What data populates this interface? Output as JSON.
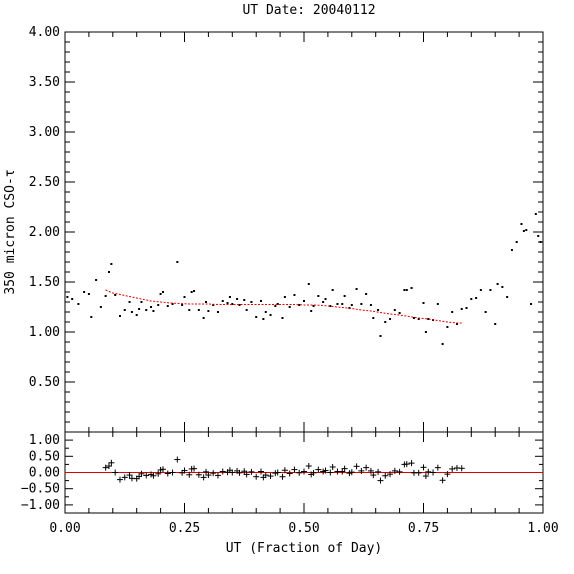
{
  "chart_data": [
    {
      "type": "scatter",
      "title": "UT Date: 20040112",
      "ylabel": "350 micron CSO-τ",
      "xlabel": "",
      "xlim": [
        0.0,
        1.0
      ],
      "ylim": [
        0.0,
        4.0
      ],
      "xticks": [
        "0.00",
        "0.25",
        "0.50",
        "0.75",
        "1.00"
      ],
      "yticks": [
        "0.50",
        "1.00",
        "1.50",
        "2.00",
        "2.50",
        "3.00",
        "3.50",
        "4.00"
      ],
      "ytick_values": [
        0.5,
        1.0,
        1.5,
        2.0,
        2.5,
        3.0,
        3.5,
        4.0
      ],
      "series": [
        {
          "marker": "dot",
          "color": "#000000",
          "x": [
            0.005,
            0.015,
            0.028,
            0.04,
            0.05,
            0.055,
            0.065,
            0.075,
            0.085,
            0.092,
            0.097,
            0.105,
            0.115,
            0.125,
            0.135,
            0.14,
            0.15,
            0.155,
            0.16,
            0.17,
            0.18,
            0.185,
            0.195,
            0.2,
            0.205,
            0.215,
            0.225,
            0.235,
            0.245,
            0.25,
            0.26,
            0.265,
            0.27,
            0.28,
            0.29,
            0.295,
            0.3,
            0.31,
            0.32,
            0.33,
            0.34,
            0.345,
            0.35,
            0.36,
            0.365,
            0.375,
            0.38,
            0.39,
            0.4,
            0.41,
            0.415,
            0.42,
            0.43,
            0.44,
            0.445,
            0.455,
            0.46,
            0.47,
            0.48,
            0.49,
            0.5,
            0.51,
            0.515,
            0.52,
            0.53,
            0.54,
            0.545,
            0.555,
            0.56,
            0.57,
            0.58,
            0.585,
            0.595,
            0.6,
            0.61,
            0.62,
            0.63,
            0.64,
            0.645,
            0.655,
            0.66,
            0.67,
            0.68,
            0.69,
            0.7,
            0.71,
            0.715,
            0.725,
            0.73,
            0.74,
            0.75,
            0.755,
            0.76,
            0.77,
            0.78,
            0.79,
            0.8,
            0.81,
            0.82,
            0.83,
            0.84,
            0.85,
            0.86,
            0.87,
            0.88,
            0.89,
            0.9,
            0.905,
            0.915,
            0.925,
            0.935,
            0.945,
            0.955,
            0.96,
            0.965,
            0.975,
            0.985,
            0.99,
            0.995
          ],
          "y": [
            1.35,
            1.33,
            1.28,
            1.4,
            1.38,
            1.15,
            1.52,
            1.25,
            1.36,
            1.6,
            1.68,
            1.37,
            1.16,
            1.22,
            1.3,
            1.2,
            1.17,
            1.23,
            1.3,
            1.22,
            1.25,
            1.21,
            1.27,
            1.38,
            1.4,
            1.26,
            1.28,
            1.7,
            1.27,
            1.35,
            1.22,
            1.4,
            1.41,
            1.22,
            1.14,
            1.3,
            1.21,
            1.27,
            1.2,
            1.31,
            1.29,
            1.35,
            1.28,
            1.33,
            1.27,
            1.32,
            1.22,
            1.3,
            1.15,
            1.31,
            1.13,
            1.2,
            1.17,
            1.26,
            1.28,
            1.14,
            1.35,
            1.25,
            1.37,
            1.27,
            1.31,
            1.48,
            1.21,
            1.26,
            1.36,
            1.3,
            1.33,
            1.26,
            1.42,
            1.28,
            1.28,
            1.36,
            1.24,
            1.27,
            1.43,
            1.28,
            1.38,
            1.27,
            1.14,
            1.22,
            0.96,
            1.1,
            1.13,
            1.22,
            1.19,
            1.42,
            1.42,
            1.44,
            1.14,
            1.13,
            1.29,
            1.0,
            1.13,
            1.12,
            1.28,
            0.88,
            1.05,
            1.2,
            1.08,
            1.23,
            1.24,
            1.33,
            1.34,
            1.42,
            1.2,
            1.42,
            1.08,
            1.48,
            1.45,
            1.35,
            1.82,
            1.9,
            2.08,
            2.01,
            2.02,
            1.28,
            2.18,
            1.96,
            1.9
          ]
        },
        {
          "marker": "line",
          "color": "#e00000",
          "x": [
            0.085,
            0.1,
            0.12,
            0.14,
            0.16,
            0.18,
            0.2,
            0.22,
            0.24,
            0.26,
            0.28,
            0.3,
            0.32,
            0.34,
            0.36,
            0.38,
            0.4,
            0.42,
            0.44,
            0.46,
            0.48,
            0.5,
            0.52,
            0.54,
            0.56,
            0.58,
            0.6,
            0.62,
            0.64,
            0.66,
            0.68,
            0.7,
            0.72,
            0.74,
            0.76,
            0.78,
            0.8,
            0.82,
            0.83
          ],
          "y": [
            1.42,
            1.39,
            1.37,
            1.35,
            1.33,
            1.31,
            1.3,
            1.29,
            1.285,
            1.28,
            1.28,
            1.28,
            1.275,
            1.275,
            1.275,
            1.275,
            1.275,
            1.275,
            1.275,
            1.275,
            1.275,
            1.27,
            1.27,
            1.265,
            1.255,
            1.245,
            1.235,
            1.22,
            1.21,
            1.195,
            1.18,
            1.17,
            1.155,
            1.14,
            1.13,
            1.115,
            1.1,
            1.09,
            1.09
          ]
        }
      ]
    },
    {
      "type": "scatter",
      "xlabel": "UT (Fraction of Day)",
      "ylabel": "",
      "xlim": [
        0.0,
        1.0
      ],
      "ylim": [
        -1.25,
        1.25
      ],
      "xticks": [
        "0.00",
        "0.25",
        "0.50",
        "0.75",
        "1.00"
      ],
      "yticks": [
        "−1.00",
        "−0.50",
        "0.00",
        "0.50",
        "1.00"
      ],
      "ytick_values": [
        -1.0,
        -0.5,
        0.0,
        0.5,
        1.0
      ],
      "reference_line": {
        "y": 0.0,
        "color": "#e00000"
      },
      "series": [
        {
          "marker": "plus",
          "color": "#000000",
          "x": [
            0.085,
            0.092,
            0.097,
            0.105,
            0.115,
            0.125,
            0.135,
            0.14,
            0.15,
            0.155,
            0.16,
            0.17,
            0.18,
            0.185,
            0.195,
            0.2,
            0.205,
            0.215,
            0.225,
            0.235,
            0.245,
            0.25,
            0.26,
            0.265,
            0.27,
            0.28,
            0.29,
            0.295,
            0.3,
            0.31,
            0.32,
            0.33,
            0.34,
            0.345,
            0.35,
            0.36,
            0.365,
            0.375,
            0.38,
            0.39,
            0.4,
            0.41,
            0.415,
            0.42,
            0.43,
            0.44,
            0.445,
            0.455,
            0.46,
            0.47,
            0.48,
            0.49,
            0.5,
            0.51,
            0.515,
            0.52,
            0.53,
            0.54,
            0.545,
            0.555,
            0.56,
            0.57,
            0.58,
            0.585,
            0.595,
            0.6,
            0.61,
            0.62,
            0.63,
            0.64,
            0.645,
            0.655,
            0.66,
            0.67,
            0.68,
            0.69,
            0.7,
            0.71,
            0.715,
            0.725,
            0.73,
            0.74,
            0.75,
            0.755,
            0.76,
            0.77,
            0.78,
            0.79,
            0.8,
            0.81,
            0.82,
            0.83
          ],
          "y": [
            0.15,
            0.2,
            0.3,
            0.0,
            -0.22,
            -0.15,
            -0.08,
            -0.18,
            -0.19,
            -0.12,
            -0.04,
            -0.09,
            -0.06,
            -0.1,
            -0.04,
            0.08,
            0.1,
            -0.03,
            0.0,
            0.4,
            -0.01,
            0.06,
            -0.07,
            0.11,
            0.12,
            -0.07,
            -0.15,
            0.02,
            -0.08,
            -0.02,
            -0.09,
            0.03,
            0.01,
            0.07,
            0.0,
            0.05,
            -0.01,
            0.04,
            -0.06,
            0.02,
            -0.13,
            0.03,
            -0.15,
            -0.08,
            -0.11,
            -0.02,
            0.0,
            -0.13,
            0.07,
            -0.03,
            0.09,
            -0.01,
            0.03,
            0.2,
            -0.06,
            -0.01,
            0.09,
            0.03,
            0.06,
            0.0,
            0.17,
            0.03,
            0.03,
            0.12,
            -0.02,
            0.01,
            0.19,
            0.05,
            0.15,
            0.05,
            -0.08,
            0.02,
            -0.25,
            -0.1,
            -0.05,
            0.05,
            0.02,
            0.25,
            0.26,
            0.29,
            -0.01,
            -0.01,
            0.16,
            -0.11,
            0.02,
            0.0,
            0.15,
            -0.24,
            -0.05,
            0.11,
            0.14,
            0.13
          ]
        }
      ]
    }
  ],
  "colors": {
    "axis": "#000000",
    "fit": "#e00000",
    "data": "#000000"
  }
}
